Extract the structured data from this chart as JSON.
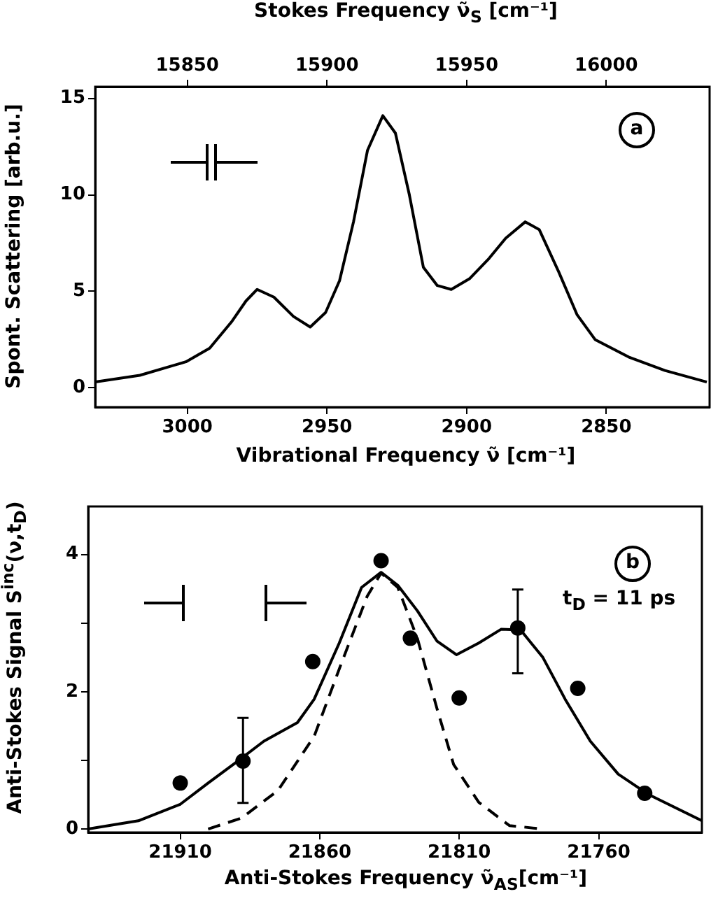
{
  "chart_data": [
    {
      "type": "line",
      "x2label": "Stokes Frequency ν̃$_{S}$ [cm⁻¹]",
      "xlabel": "Vibrational Frequency ν̃ [cm⁻¹]",
      "ylabel": "Spont. Scattering [arb.u.]",
      "annotations": [
        "a"
      ],
      "xlim": [
        3033,
        2813
      ],
      "xticks": [
        3000,
        2950,
        2900,
        2850
      ],
      "x2lim": [
        15817,
        16037
      ],
      "x2ticks": [
        15850,
        15900,
        15950,
        16000
      ],
      "ylim": [
        -1,
        15.6
      ],
      "yticks": [
        0,
        5,
        10,
        15
      ],
      "grid": false,
      "legend": false,
      "marker": "none",
      "x": [
        3033,
        3017,
        3000.5,
        2992,
        2984,
        2979,
        2975,
        2969,
        2962,
        2956,
        2950.5,
        2945.5,
        2940.5,
        2935.5,
        2930,
        2925.5,
        2920.5,
        2915.5,
        2910.5,
        2905.5,
        2899,
        2892,
        2886,
        2879,
        2874,
        2867,
        2860.5,
        2854,
        2842,
        2829,
        2814
      ],
      "series": [
        {
          "color": "#000000",
          "values": [
            0.3,
            0.65,
            1.35,
            2.05,
            3.45,
            4.5,
            5.1,
            4.7,
            3.7,
            3.15,
            3.9,
            5.55,
            8.6,
            12.3,
            14.1,
            13.2,
            10.0,
            6.25,
            5.3,
            5.1,
            5.65,
            6.7,
            7.75,
            8.6,
            8.2,
            6.0,
            3.8,
            2.5,
            1.6,
            0.9,
            0.3
          ]
        }
      ]
    },
    {
      "type": "line",
      "xlabel": "Anti-Stokes Frequency ν̃$_{AS}$[cm⁻¹]",
      "ylabel": "Anti-Stokes Signal S$^{inc}$(ν,t$_{D}$)",
      "annotations": [
        "b",
        "t$_{D}$ = 11 ps"
      ],
      "xlim": [
        21943,
        21723
      ],
      "xticks": [
        21910,
        21860,
        21810,
        21760
      ],
      "ylim": [
        -0.05,
        4.7
      ],
      "yticks": [
        0,
        {
          "value": 1,
          "label": null
        },
        2,
        {
          "value": 3,
          "label": null
        },
        4
      ],
      "grid": false,
      "legend": false,
      "series": [
        {
          "type": "line",
          "color": "#000000",
          "marker": "none",
          "line_style": "solid",
          "x": [
            21943,
            21925,
            21910,
            21900,
            21890,
            21880,
            21868,
            21862,
            21853,
            21845,
            21838,
            21832,
            21825,
            21818,
            21811,
            21803,
            21795,
            21788,
            21780,
            21772,
            21763,
            21753,
            21742,
            21723
          ],
          "values": [
            0,
            0.12,
            0.36,
            0.67,
            0.97,
            1.28,
            1.55,
            1.89,
            2.71,
            3.52,
            3.74,
            3.55,
            3.18,
            2.74,
            2.54,
            2.71,
            2.91,
            2.9,
            2.5,
            1.89,
            1.28,
            0.8,
            0.5,
            0.12
          ]
        },
        {
          "type": "line",
          "color": "#000000",
          "marker": "none",
          "line_style": "dashed",
          "x": [
            21900,
            21888,
            21875,
            21862,
            21852,
            21843,
            21838,
            21832,
            21825,
            21818,
            21812,
            21803,
            21792,
            21780
          ],
          "values": [
            0,
            0.16,
            0.56,
            1.35,
            2.44,
            3.39,
            3.73,
            3.52,
            2.78,
            1.76,
            0.94,
            0.39,
            0.05,
            0
          ]
        },
        {
          "type": "scatter",
          "color": "#000000",
          "marker": "circle",
          "x": [
            21910,
            21887.5,
            21862.5,
            21838,
            21827.5,
            21810,
            21789,
            21767.5,
            21743.5
          ],
          "values": [
            0.67,
            0.99,
            2.44,
            3.91,
            2.78,
            1.91,
            2.93,
            2.05,
            0.52
          ],
          "errors": [
            null,
            [
              0.38,
              1.62
            ],
            null,
            null,
            null,
            null,
            [
              2.27,
              3.49
            ],
            null,
            null
          ]
        }
      ]
    }
  ]
}
